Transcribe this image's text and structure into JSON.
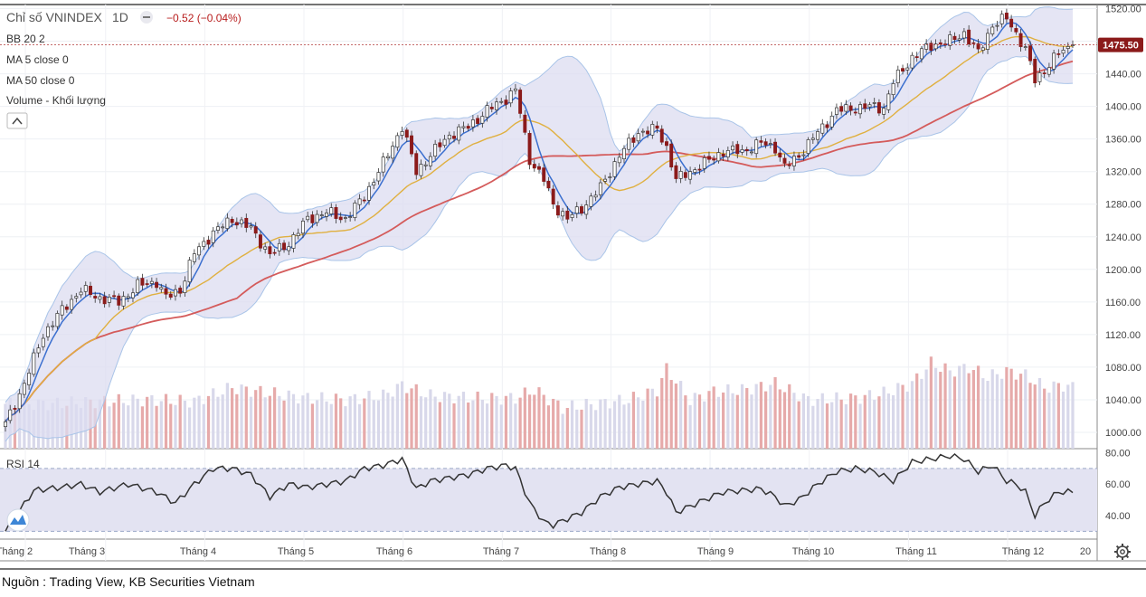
{
  "header": {
    "symbol": "Chỉ số VNINDEX",
    "interval": "1D",
    "change": "−0.52 (−0.04%)",
    "indicators": [
      "BB 20 2",
      "MA 5 close 0",
      "MA 50 close 0",
      "Volume - Khối lượng"
    ],
    "rsi_label": "RSI 14"
  },
  "last_price_label": "1475.50",
  "source": "Nguồn : Trading View, KB Securities Vietnam",
  "colors": {
    "up": "#ffffff",
    "down": "#8b1a1a",
    "wick": "#333333",
    "bb_fill": "#dcdcf0",
    "bb_line": "#a9c4e8",
    "ma5": "#3b6fcf",
    "ma20": "#e0b040",
    "ma50": "#d45b5b",
    "vol_up": "#d8d8ea",
    "vol_down": "#e6aaaa",
    "rsi": "#333333",
    "price_tag": "#8b1a1a"
  },
  "chart_data": {
    "type": "candlestick",
    "yaxis_price": {
      "ticks": [
        "1520.00",
        "1480.00",
        "1440.00",
        "1400.00",
        "1360.00",
        "1320.00",
        "1280.00",
        "1240.00",
        "1200.00",
        "1160.00",
        "1120.00",
        "1080.00",
        "1040.00",
        "1000.00"
      ],
      "range": [
        980,
        1525
      ]
    },
    "yaxis_rsi": {
      "ticks": [
        "80.00",
        "60.00",
        "40.00"
      ],
      "range": [
        25,
        82
      ],
      "bands": [
        70,
        30
      ]
    },
    "xaxis": {
      "labels": [
        "Tháng 2",
        "Tháng 3",
        "Tháng 4",
        "Tháng 5",
        "Tháng 6",
        "Tháng 7",
        "Tháng 8",
        "Tháng 9",
        "Tháng 10",
        "Tháng 11",
        "Tháng 12",
        "20"
      ]
    },
    "close_anchors": [
      [
        0,
        1010
      ],
      [
        4,
        1060
      ],
      [
        8,
        1120
      ],
      [
        12,
        1150
      ],
      [
        16,
        1175
      ],
      [
        20,
        1165
      ],
      [
        24,
        1160
      ],
      [
        28,
        1180
      ],
      [
        32,
        1185
      ],
      [
        34,
        1165
      ],
      [
        37,
        1175
      ],
      [
        40,
        1220
      ],
      [
        44,
        1245
      ],
      [
        48,
        1262
      ],
      [
        52,
        1250
      ],
      [
        56,
        1218
      ],
      [
        60,
        1232
      ],
      [
        64,
        1262
      ],
      [
        68,
        1270
      ],
      [
        72,
        1262
      ],
      [
        76,
        1290
      ],
      [
        80,
        1330
      ],
      [
        84,
        1375
      ],
      [
        87,
        1320
      ],
      [
        90,
        1340
      ],
      [
        94,
        1365
      ],
      [
        98,
        1375
      ],
      [
        102,
        1395
      ],
      [
        106,
        1410
      ],
      [
        108,
        1420
      ],
      [
        111,
        1335
      ],
      [
        114,
        1310
      ],
      [
        116,
        1280
      ],
      [
        119,
        1262
      ],
      [
        122,
        1275
      ],
      [
        126,
        1300
      ],
      [
        130,
        1340
      ],
      [
        134,
        1368
      ],
      [
        138,
        1372
      ],
      [
        140,
        1350
      ],
      [
        142,
        1310
      ],
      [
        145,
        1320
      ],
      [
        148,
        1330
      ],
      [
        152,
        1345
      ],
      [
        156,
        1345
      ],
      [
        160,
        1355
      ],
      [
        163,
        1350
      ],
      [
        165,
        1325
      ],
      [
        168,
        1340
      ],
      [
        172,
        1368
      ],
      [
        176,
        1395
      ],
      [
        180,
        1398
      ],
      [
        184,
        1400
      ],
      [
        186,
        1398
      ],
      [
        188,
        1430
      ],
      [
        192,
        1460
      ],
      [
        196,
        1475
      ],
      [
        200,
        1480
      ],
      [
        203,
        1490
      ],
      [
        206,
        1465
      ],
      [
        209,
        1500
      ],
      [
        212,
        1508
      ],
      [
        214,
        1490
      ],
      [
        216,
        1470
      ],
      [
        218,
        1432
      ],
      [
        220,
        1445
      ],
      [
        223,
        1465
      ],
      [
        226,
        1475.5
      ]
    ],
    "rsi_anchors": [
      [
        0,
        30
      ],
      [
        6,
        56
      ],
      [
        12,
        58
      ],
      [
        16,
        60
      ],
      [
        20,
        55
      ],
      [
        26,
        60
      ],
      [
        32,
        55
      ],
      [
        36,
        48
      ],
      [
        40,
        60
      ],
      [
        44,
        70
      ],
      [
        48,
        70
      ],
      [
        52,
        66
      ],
      [
        56,
        52
      ],
      [
        60,
        60
      ],
      [
        64,
        58
      ],
      [
        68,
        60
      ],
      [
        72,
        62
      ],
      [
        76,
        70
      ],
      [
        80,
        72
      ],
      [
        84,
        76
      ],
      [
        87,
        57
      ],
      [
        90,
        62
      ],
      [
        94,
        64
      ],
      [
        98,
        66
      ],
      [
        102,
        70
      ],
      [
        106,
        72
      ],
      [
        108,
        70
      ],
      [
        111,
        48
      ],
      [
        114,
        36
      ],
      [
        116,
        34
      ],
      [
        119,
        38
      ],
      [
        122,
        42
      ],
      [
        126,
        52
      ],
      [
        130,
        58
      ],
      [
        134,
        60
      ],
      [
        138,
        62
      ],
      [
        140,
        55
      ],
      [
        142,
        42
      ],
      [
        145,
        46
      ],
      [
        148,
        50
      ],
      [
        152,
        55
      ],
      [
        156,
        56
      ],
      [
        160,
        57
      ],
      [
        163,
        52
      ],
      [
        165,
        46
      ],
      [
        168,
        50
      ],
      [
        172,
        60
      ],
      [
        176,
        68
      ],
      [
        180,
        70
      ],
      [
        184,
        68
      ],
      [
        188,
        62
      ],
      [
        192,
        74
      ],
      [
        196,
        76
      ],
      [
        200,
        78
      ],
      [
        203,
        76
      ],
      [
        206,
        68
      ],
      [
        209,
        72
      ],
      [
        212,
        62
      ],
      [
        214,
        60
      ],
      [
        216,
        55
      ],
      [
        218,
        40
      ],
      [
        220,
        48
      ],
      [
        223,
        55
      ],
      [
        226,
        55
      ]
    ],
    "vol_anchors": [
      [
        0,
        1035
      ],
      [
        10,
        1035
      ],
      [
        20,
        1038
      ],
      [
        30,
        1040
      ],
      [
        40,
        1038
      ],
      [
        48,
        1055
      ],
      [
        56,
        1048
      ],
      [
        64,
        1042
      ],
      [
        72,
        1040
      ],
      [
        80,
        1045
      ],
      [
        84,
        1058
      ],
      [
        90,
        1045
      ],
      [
        100,
        1042
      ],
      [
        108,
        1042
      ],
      [
        112,
        1052
      ],
      [
        118,
        1030
      ],
      [
        125,
        1035
      ],
      [
        132,
        1040
      ],
      [
        138,
        1052
      ],
      [
        140,
        1078
      ],
      [
        145,
        1040
      ],
      [
        150,
        1050
      ],
      [
        156,
        1052
      ],
      [
        163,
        1060
      ],
      [
        170,
        1040
      ],
      [
        180,
        1042
      ],
      [
        186,
        1048
      ],
      [
        192,
        1060
      ],
      [
        196,
        1085
      ],
      [
        200,
        1075
      ],
      [
        204,
        1080
      ],
      [
        208,
        1068
      ],
      [
        212,
        1075
      ],
      [
        216,
        1070
      ],
      [
        220,
        1055
      ],
      [
        224,
        1058
      ],
      [
        226,
        1055
      ]
    ]
  }
}
